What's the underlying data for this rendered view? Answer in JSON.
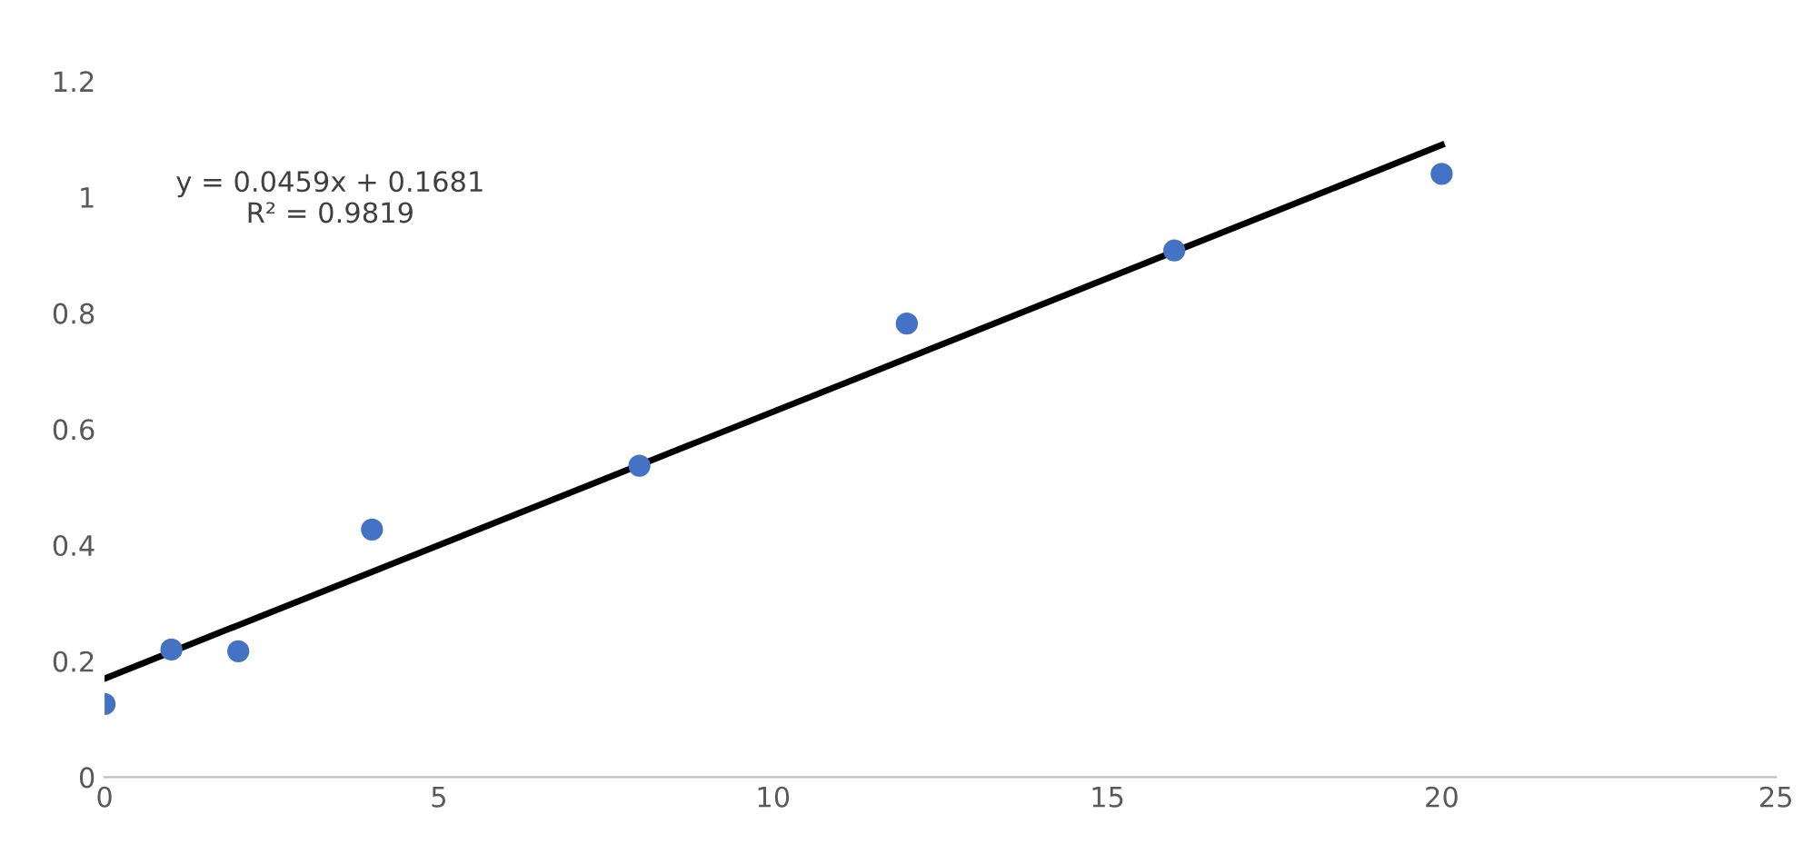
{
  "chart_data": {
    "type": "scatter",
    "xlim": [
      0,
      25
    ],
    "xticks": [
      0,
      5,
      10,
      15,
      20,
      25
    ],
    "ylim": [
      0,
      1.2
    ],
    "yticks": [
      0,
      0.2,
      0.4,
      0.6,
      0.8,
      1,
      1.2
    ],
    "grid": false,
    "series": [
      {
        "color": "#4472c4",
        "x": [
          0,
          1,
          2,
          4,
          8,
          12,
          16,
          20
        ],
        "values": [
          0.126,
          0.22,
          0.217,
          0.427,
          0.537,
          0.782,
          0.908,
          1.04
        ],
        "marker": "circle"
      },
      {
        "type": "line",
        "color": "#000000",
        "x": [
          0,
          20
        ],
        "values": [
          0.17,
          1.09
        ],
        "line_style": "solid"
      }
    ],
    "annotations": [
      "y = 0.0459x + 0.1681\nR² = 0.9819"
    ]
  }
}
